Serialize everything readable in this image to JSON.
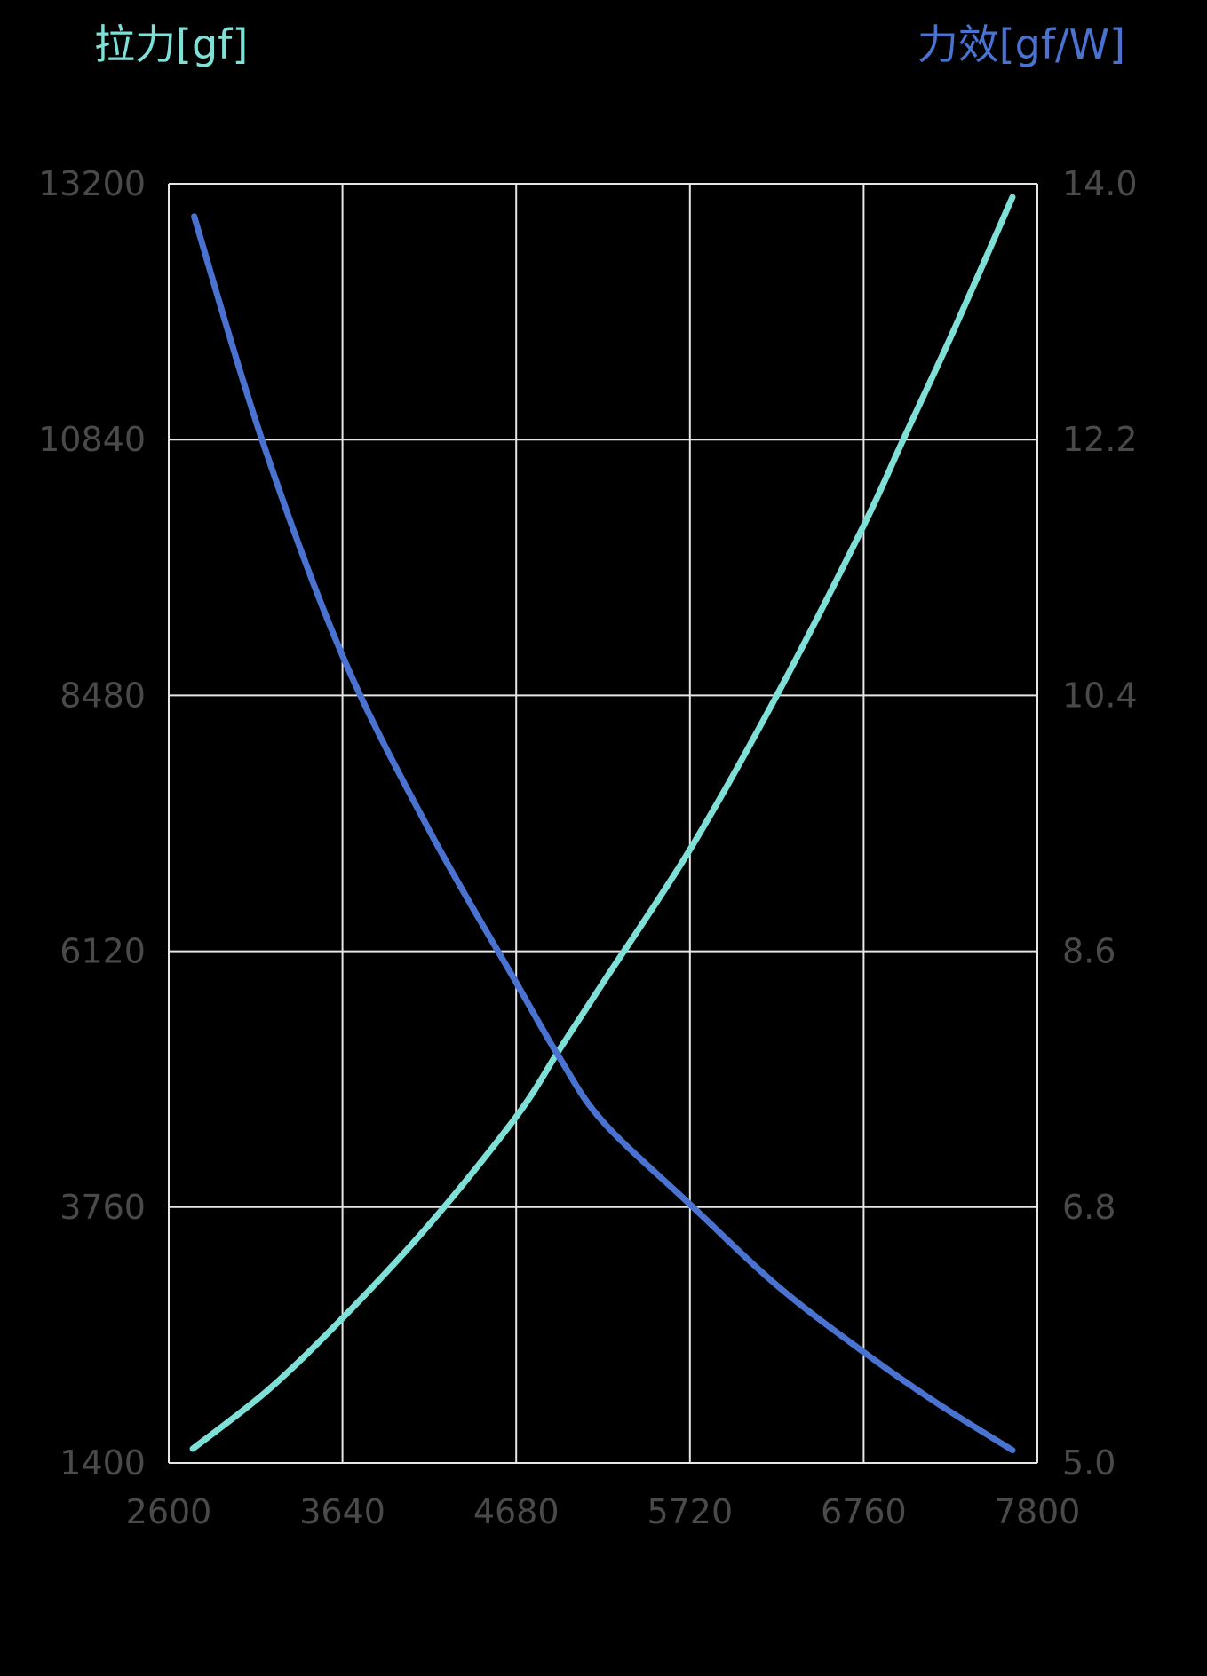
{
  "chart_data": {
    "type": "line",
    "title": "",
    "xlabel": "",
    "ylabel_left": "拉力[gf]",
    "ylabel_right": "力效[gf/W]",
    "xlim": [
      2600,
      7800
    ],
    "ylim_left": [
      1400,
      13200
    ],
    "ylim_right": [
      5.0,
      14.0
    ],
    "x_ticks": [
      "2600",
      "3640",
      "4680",
      "5720",
      "6760",
      "7800"
    ],
    "y_ticks_left": [
      "1400",
      "3760",
      "6120",
      "8480",
      "10840",
      "13200"
    ],
    "y_ticks_right": [
      "5.0",
      "6.8",
      "8.6",
      "10.4",
      "12.2",
      "14.0"
    ],
    "grid": true,
    "legend": "none",
    "series": [
      {
        "name": "拉力[gf]",
        "axis": "left",
        "color": "#7fe0d8",
        "x": [
          2744,
          3200,
          3640,
          4160,
          4680,
          4940,
          5200,
          5720,
          6240,
          6760,
          6997,
          7300,
          7651
        ],
        "values": [
          1531,
          2080,
          2735,
          3600,
          4594,
          5216,
          5830,
          7058,
          8480,
          10047,
          10840,
          11850,
          13077
        ]
      },
      {
        "name": "力效[gf/W]",
        "axis": "right",
        "color": "#4a72d0",
        "x": [
          2752,
          3158,
          3640,
          4160,
          4680,
          4940,
          5200,
          5720,
          6240,
          6760,
          7200,
          7651
        ],
        "values": [
          13.77,
          12.2,
          10.68,
          9.45,
          8.38,
          7.85,
          7.4,
          6.82,
          6.25,
          5.78,
          5.42,
          5.09
        ]
      }
    ]
  },
  "axes": {
    "left_title": "拉力[gf]",
    "right_title": "力效[gf/W]",
    "left_color": "#7fe0d8",
    "right_color": "#4a72d0",
    "grid_color": "#e6e6e6",
    "tick_color": "#4a4a4a"
  }
}
